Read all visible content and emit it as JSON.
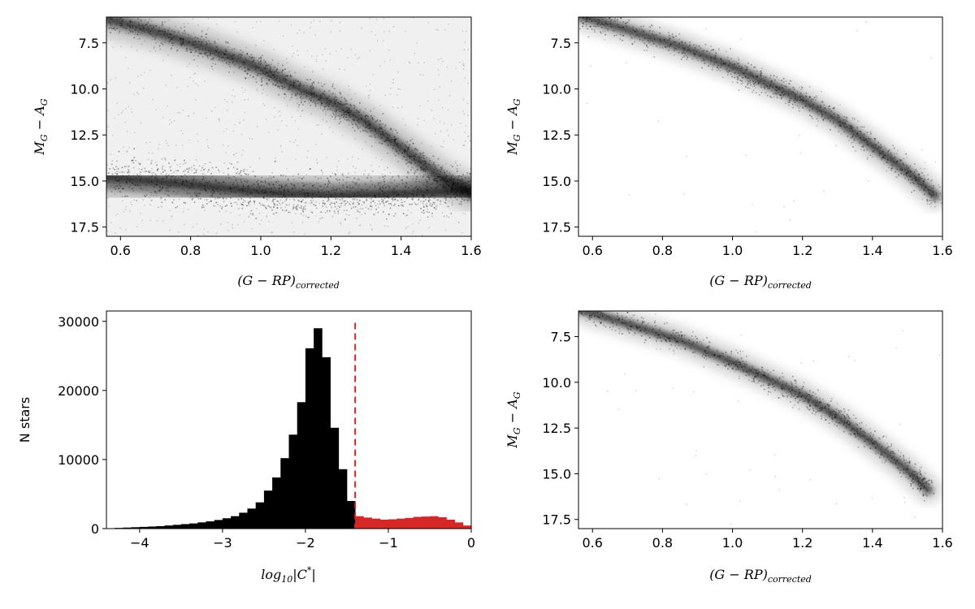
{
  "chart_data": [
    {
      "id": "cmd-all",
      "type": "heatmap",
      "description": "density scatter (Hess diagram)",
      "xlabel": {
        "base": "(G − RP)",
        "sub": "corrected"
      },
      "ylabel": {
        "base": "M",
        "sub1": "G",
        "mid": " − A",
        "sub2": "G"
      },
      "xlim": [
        0.56,
        1.6
      ],
      "ylim": [
        18.0,
        6.1
      ],
      "y_inverted": true,
      "xticks": [
        "0.6",
        "0.8",
        "1.0",
        "1.2",
        "1.4",
        "1.6"
      ],
      "xtick_values": [
        0.6,
        0.8,
        1.0,
        1.2,
        1.4,
        1.6
      ],
      "yticks": [
        "7.5",
        "10.0",
        "12.5",
        "15.0",
        "17.5"
      ],
      "ytick_values": [
        7.5,
        10.0,
        12.5,
        15.0,
        17.5
      ],
      "color": "#000000",
      "features": [
        {
          "name": "main sequence",
          "points": [
            [
              0.56,
              6.2
            ],
            [
              0.7,
              6.9
            ],
            [
              0.85,
              7.8
            ],
            [
              1.0,
              8.9
            ],
            [
              1.1,
              9.9
            ],
            [
              1.2,
              10.7
            ],
            [
              1.3,
              11.8
            ],
            [
              1.4,
              13.2
            ],
            [
              1.5,
              14.6
            ],
            [
              1.6,
              15.7
            ]
          ]
        },
        {
          "name": "lower band",
          "points": [
            [
              0.56,
              14.8
            ],
            [
              0.8,
              15.2
            ],
            [
              1.0,
              15.6
            ],
            [
              1.2,
              15.8
            ],
            [
              1.4,
              15.7
            ],
            [
              1.6,
              15.5
            ]
          ]
        }
      ]
    },
    {
      "id": "cmd-clean",
      "type": "heatmap",
      "description": "density scatter (Hess diagram)",
      "xlabel": {
        "base": "(G − RP)",
        "sub": "corrected"
      },
      "ylabel": {
        "base": "M",
        "sub1": "G",
        "mid": " − A",
        "sub2": "G"
      },
      "xlim": [
        0.56,
        1.6
      ],
      "ylim": [
        18.0,
        6.1
      ],
      "y_inverted": true,
      "xticks": [
        "0.6",
        "0.8",
        "1.0",
        "1.2",
        "1.4",
        "1.6"
      ],
      "xtick_values": [
        0.6,
        0.8,
        1.0,
        1.2,
        1.4,
        1.6
      ],
      "yticks": [
        "7.5",
        "10.0",
        "12.5",
        "15.0",
        "17.5"
      ],
      "ytick_values": [
        7.5,
        10.0,
        12.5,
        15.0,
        17.5
      ],
      "color": "#000000",
      "features": [
        {
          "name": "main sequence",
          "points": [
            [
              0.56,
              6.0
            ],
            [
              0.7,
              6.8
            ],
            [
              0.85,
              7.7
            ],
            [
              1.0,
              8.8
            ],
            [
              1.1,
              9.7
            ],
            [
              1.2,
              10.6
            ],
            [
              1.3,
              11.7
            ],
            [
              1.4,
              13.1
            ],
            [
              1.5,
              14.5
            ],
            [
              1.58,
              15.8
            ]
          ]
        }
      ]
    },
    {
      "id": "hist-cstar",
      "type": "bar",
      "description": "histogram",
      "xlabel": {
        "base": "log",
        "sub": "10",
        "rest": "|C",
        "sup": "*",
        "end": "|"
      },
      "ylabel": "N stars",
      "xlim": [
        -4.4,
        0
      ],
      "ylim": [
        0,
        31500
      ],
      "xticks": [
        "−4",
        "−3",
        "−2",
        "−1",
        "0"
      ],
      "xtick_values": [
        -4,
        -3,
        -2,
        -1,
        0
      ],
      "yticks": [
        "0",
        "10000",
        "20000",
        "30000"
      ],
      "ytick_values": [
        0,
        10000,
        20000,
        30000
      ],
      "bin_width": 0.1,
      "threshold": -1.4,
      "threshold_color": "#d62728",
      "bins_left": [
        -4.3,
        -4.2,
        -4.1,
        -4.0,
        -3.9,
        -3.8,
        -3.7,
        -3.6,
        -3.5,
        -3.4,
        -3.3,
        -3.2,
        -3.1,
        -3.0,
        -2.9,
        -2.8,
        -2.7,
        -2.6,
        -2.5,
        -2.4,
        -2.3,
        -2.2,
        -2.1,
        -2.0,
        -1.9,
        -1.8,
        -1.7,
        -1.6,
        -1.5,
        -1.4,
        -1.3,
        -1.2,
        -1.1,
        -1.0,
        -0.9,
        -0.8,
        -0.7,
        -0.6,
        -0.5,
        -0.4,
        -0.3,
        -0.2,
        -0.1
      ],
      "values": [
        100,
        150,
        200,
        250,
        300,
        350,
        450,
        550,
        650,
        750,
        900,
        1050,
        1250,
        1500,
        1800,
        2300,
        2900,
        3800,
        5500,
        7400,
        10200,
        13600,
        18300,
        26100,
        29000,
        24800,
        14600,
        8600,
        4000,
        1800,
        1600,
        1450,
        1300,
        1350,
        1450,
        1550,
        1700,
        1750,
        1800,
        1650,
        1300,
        900,
        450
      ],
      "colors": {
        "below": "#000000",
        "above": "#d62728"
      }
    },
    {
      "id": "cmd-selected",
      "type": "heatmap",
      "description": "density scatter (Hess diagram)",
      "xlabel": {
        "base": "(G − RP)",
        "sub": "corrected"
      },
      "ylabel": {
        "base": "M",
        "sub1": "G",
        "mid": " − A",
        "sub2": "G"
      },
      "xlim": [
        0.56,
        1.6
      ],
      "ylim": [
        18.0,
        6.1
      ],
      "y_inverted": true,
      "xticks": [
        "0.6",
        "0.8",
        "1.0",
        "1.2",
        "1.4",
        "1.6"
      ],
      "xtick_values": [
        0.6,
        0.8,
        1.0,
        1.2,
        1.4,
        1.6
      ],
      "yticks": [
        "7.5",
        "10.0",
        "12.5",
        "15.0",
        "17.5"
      ],
      "ytick_values": [
        7.5,
        10.0,
        12.5,
        15.0,
        17.5
      ],
      "color": "#000000",
      "features": [
        {
          "name": "main sequence",
          "points": [
            [
              0.56,
              6.0
            ],
            [
              0.7,
              6.8
            ],
            [
              0.85,
              7.7
            ],
            [
              1.0,
              8.9
            ],
            [
              1.1,
              9.8
            ],
            [
              1.2,
              10.7
            ],
            [
              1.3,
              11.9
            ],
            [
              1.4,
              13.3
            ],
            [
              1.5,
              14.8
            ],
            [
              1.56,
              15.9
            ]
          ]
        }
      ]
    }
  ]
}
